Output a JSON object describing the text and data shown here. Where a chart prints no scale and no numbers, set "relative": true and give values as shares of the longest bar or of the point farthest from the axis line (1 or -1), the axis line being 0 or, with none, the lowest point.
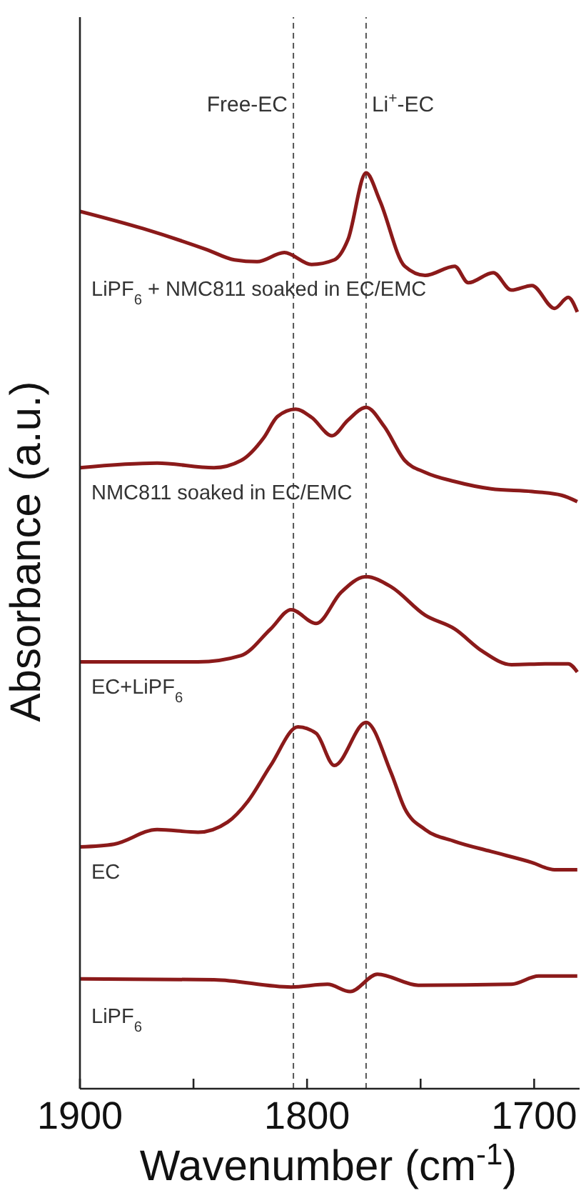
{
  "chart_data": {
    "type": "line",
    "relative": true,
    "xlabel": "Wavenumber (cm$^{-1}$)",
    "ylabel": "Absorbance (a.u.)",
    "xlim": [
      1900,
      1680
    ],
    "xticks": [
      1900,
      {
        "value": 1850,
        "label": null
      },
      1800,
      {
        "value": 1750,
        "label": null
      },
      1700
    ],
    "tick_labels": "x",
    "ref_lines": [
      {
        "axis": "x",
        "value": 1806,
        "label": "Free-EC",
        "line_style": "dashed",
        "color": "#555555"
      },
      {
        "axis": "x",
        "value": 1774,
        "label": "Li$^{+}$-EC",
        "line_style": "dashed",
        "color": "#555555"
      }
    ],
    "series": [
      {
        "name": "LiPF$_{6}$ + NMC811 soaked in EC/EMC",
        "color": "#8b1a1a",
        "x": [
          1900,
          1872,
          1844,
          1832,
          1822,
          1810,
          1798,
          1788,
          1782,
          1774,
          1768,
          1757,
          1748,
          1735,
          1729,
          1718,
          1710,
          1701,
          1691,
          1685,
          1681
        ],
        "values": [
          0.958,
          0.939,
          0.916,
          0.905,
          0.903,
          0.913,
          0.9,
          0.905,
          0.927,
          1.0,
          0.97,
          0.898,
          0.888,
          0.898,
          0.88,
          0.891,
          0.872,
          0.877,
          0.852,
          0.864,
          0.848
        ]
      },
      {
        "name": "NMC811 soaked in EC/EMC",
        "color": "#8b1a1a",
        "x": [
          1900,
          1866,
          1841,
          1829,
          1819,
          1813,
          1805,
          1798,
          1789,
          1782,
          1774,
          1766,
          1757,
          1748,
          1735,
          1719,
          1701,
          1688,
          1681
        ],
        "values": [
          0.678,
          0.683,
          0.678,
          0.686,
          0.711,
          0.734,
          0.742,
          0.733,
          0.713,
          0.73,
          0.744,
          0.723,
          0.686,
          0.673,
          0.663,
          0.655,
          0.652,
          0.648,
          0.641
        ]
      },
      {
        "name": "EC+LiPF$_{6}$",
        "color": "#8b1a1a",
        "x": [
          1900,
          1848,
          1829,
          1816,
          1807,
          1796,
          1785,
          1774,
          1763,
          1748,
          1735,
          1723,
          1710,
          1694,
          1685,
          1681
        ],
        "values": [
          0.466,
          0.466,
          0.473,
          0.502,
          0.523,
          0.508,
          0.542,
          0.559,
          0.548,
          0.517,
          0.502,
          0.478,
          0.463,
          0.464,
          0.464,
          0.455
        ]
      },
      {
        "name": "EC",
        "color": "#8b1a1a",
        "x": [
          1900,
          1885,
          1866,
          1848,
          1835,
          1826,
          1816,
          1804,
          1796,
          1788,
          1774,
          1763,
          1757,
          1748,
          1735,
          1719,
          1701,
          1691,
          1681
        ],
        "values": [
          0.264,
          0.267,
          0.283,
          0.28,
          0.291,
          0.314,
          0.353,
          0.395,
          0.388,
          0.353,
          0.4,
          0.345,
          0.306,
          0.283,
          0.27,
          0.259,
          0.247,
          0.239,
          0.239
        ]
      },
      {
        "name": "LiPF$_{6}$",
        "color": "#8b1a1a",
        "x": [
          1900,
          1841,
          1807,
          1791,
          1781,
          1769,
          1751,
          1710,
          1698,
          1681
        ],
        "values": [
          0.12,
          0.119,
          0.111,
          0.114,
          0.106,
          0.125,
          0.113,
          0.114,
          0.123,
          0.123
        ]
      }
    ]
  }
}
